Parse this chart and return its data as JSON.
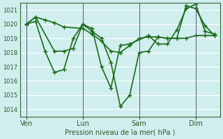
{
  "title": "",
  "xlabel": "Pression niveau de la mer( hPa )",
  "ylabel": "",
  "background_color": "#d0eeee",
  "grid_color": "#ffffff",
  "line_color": "#1a6b1a",
  "ylim": [
    1013.5,
    1021.5
  ],
  "yticks": [
    1014,
    1015,
    1016,
    1017,
    1018,
    1019,
    1020,
    1021
  ],
  "xtick_labels": [
    "Ven",
    "Lun",
    "Sam",
    "Dim"
  ],
  "xtick_positions": [
    0,
    3,
    6,
    9
  ],
  "vline_positions": [
    0,
    3,
    6,
    9
  ],
  "series": [
    {
      "x": [
        0,
        0.5,
        1.0,
        1.5,
        2.0,
        3.0,
        3.5,
        4.0,
        4.5,
        5.0,
        5.5,
        6.0,
        6.5,
        7.0,
        7.5,
        8.0,
        8.5,
        9.0,
        9.5,
        10.0
      ],
      "y": [
        1020.0,
        1020.5,
        1020.3,
        1020.1,
        1019.8,
        1019.7,
        1019.3,
        1018.8,
        1018.1,
        1018.0,
        1018.5,
        1019.0,
        1019.1,
        1019.1,
        1019.0,
        1019.0,
        1019.0,
        1019.2,
        1019.2,
        1019.2
      ]
    },
    {
      "x": [
        0,
        0.5,
        1.0,
        1.5,
        2.0,
        2.5,
        3.0,
        3.5,
        4.0,
        4.5,
        5.0,
        5.5,
        6.0,
        6.5,
        7.0,
        7.5,
        8.0,
        8.5,
        9.0,
        9.5,
        10.0
      ],
      "y": [
        1020.0,
        1020.2,
        1018.1,
        1016.6,
        1016.8,
        1019.0,
        1020.0,
        1019.5,
        1019.0,
        1017.3,
        1014.2,
        1015.0,
        1018.0,
        1018.1,
        1019.1,
        1019.0,
        1019.0,
        1021.3,
        1021.1,
        1019.9,
        1019.2
      ]
    },
    {
      "x": [
        0,
        0.5,
        1.5,
        2.0,
        2.5,
        3.0,
        3.5,
        4.0,
        4.5,
        5.0,
        5.5,
        6.5,
        7.0,
        7.5,
        8.0,
        8.5,
        9.0,
        9.5,
        10.0
      ],
      "y": [
        1020.0,
        1020.5,
        1018.1,
        1018.1,
        1018.3,
        1020.0,
        1019.7,
        1017.0,
        1015.5,
        1018.5,
        1018.6,
        1019.2,
        1018.6,
        1018.6,
        1019.6,
        1021.1,
        1021.4,
        1019.5,
        1019.3
      ]
    }
  ],
  "xlim": [
    -0.3,
    10.3
  ],
  "marker": "+",
  "markersize": 5,
  "linewidth": 1.2
}
